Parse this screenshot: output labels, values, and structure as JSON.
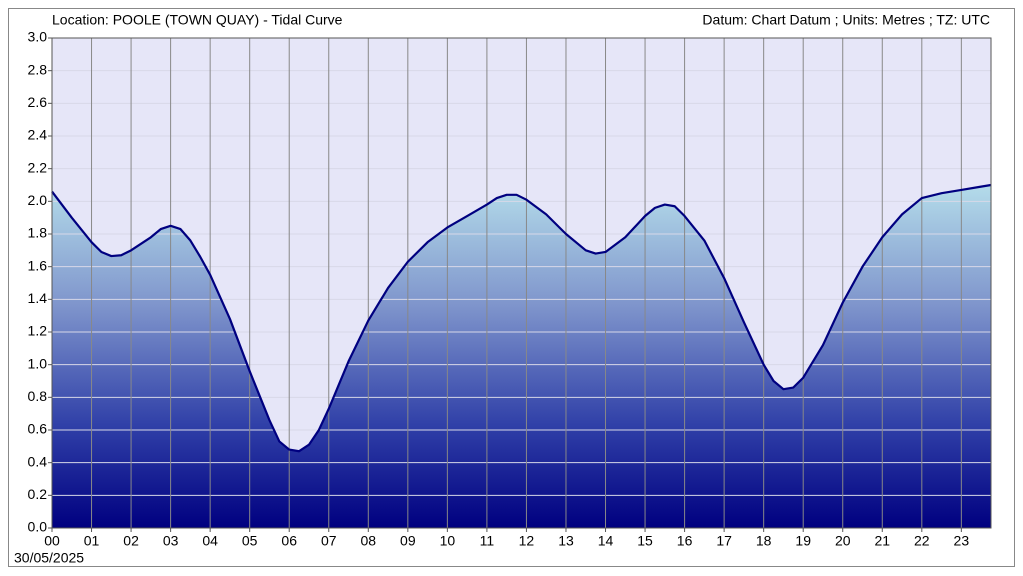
{
  "chart_data": {
    "type": "area",
    "title": "Location: POOLE (TOWN QUAY) - Tidal Curve",
    "subtitle": "Datum: Chart Datum ; Units: Metres ; TZ: UTC",
    "date_label": "30/05/2025",
    "color": "#000080",
    "grid": true,
    "x": [
      0,
      0.5,
      1,
      1.25,
      1.5,
      1.75,
      2,
      2.5,
      2.75,
      3,
      3.25,
      3.5,
      3.75,
      4,
      4.5,
      5,
      5.5,
      5.75,
      6,
      6.25,
      6.5,
      6.75,
      7,
      7.5,
      8,
      8.5,
      9,
      9.5,
      10,
      10.5,
      11,
      11.25,
      11.5,
      11.75,
      12,
      12.5,
      13,
      13.5,
      13.75,
      14,
      14.5,
      15,
      15.25,
      15.5,
      15.75,
      16,
      16.5,
      17,
      17.5,
      18,
      18.25,
      18.5,
      18.75,
      19,
      19.5,
      20,
      20.5,
      21,
      21.5,
      22,
      22.5,
      23,
      23.5,
      23.75
    ],
    "values": [
      2.06,
      1.9,
      1.75,
      1.69,
      1.665,
      1.67,
      1.7,
      1.78,
      1.83,
      1.85,
      1.83,
      1.76,
      1.66,
      1.55,
      1.28,
      0.96,
      0.66,
      0.53,
      0.48,
      0.47,
      0.51,
      0.6,
      0.73,
      1.02,
      1.27,
      1.47,
      1.63,
      1.75,
      1.84,
      1.91,
      1.98,
      2.02,
      2.04,
      2.04,
      2.01,
      1.92,
      1.8,
      1.7,
      1.68,
      1.69,
      1.78,
      1.91,
      1.96,
      1.98,
      1.97,
      1.91,
      1.76,
      1.53,
      1.26,
      1.0,
      0.9,
      0.85,
      0.86,
      0.92,
      1.12,
      1.38,
      1.6,
      1.78,
      1.92,
      2.02,
      2.05,
      2.07,
      2.09,
      2.1
    ],
    "xlim": [
      0,
      23.75
    ],
    "xticks": [
      {
        "value": 0,
        "label": "00"
      },
      {
        "value": 1,
        "label": "01"
      },
      {
        "value": 2,
        "label": "02"
      },
      {
        "value": 3,
        "label": "03"
      },
      {
        "value": 4,
        "label": "04"
      },
      {
        "value": 5,
        "label": "05"
      },
      {
        "value": 6,
        "label": "06"
      },
      {
        "value": 7,
        "label": "07"
      },
      {
        "value": 8,
        "label": "08"
      },
      {
        "value": 9,
        "label": "09"
      },
      {
        "value": 10,
        "label": "10"
      },
      {
        "value": 11,
        "label": "11"
      },
      {
        "value": 12,
        "label": "12"
      },
      {
        "value": 13,
        "label": "13"
      },
      {
        "value": 14,
        "label": "14"
      },
      {
        "value": 15,
        "label": "15"
      },
      {
        "value": 16,
        "label": "16"
      },
      {
        "value": 17,
        "label": "17"
      },
      {
        "value": 18,
        "label": "18"
      },
      {
        "value": 19,
        "label": "19"
      },
      {
        "value": 20,
        "label": "20"
      },
      {
        "value": 21,
        "label": "21"
      },
      {
        "value": 22,
        "label": "22"
      },
      {
        "value": 23,
        "label": "23"
      }
    ],
    "ylim": [
      0,
      3
    ],
    "yticks": [
      {
        "value": 0,
        "label": "0.0"
      },
      0.2,
      0.4,
      0.6,
      0.8,
      {
        "value": 1,
        "label": "1.0"
      },
      1.2,
      1.4,
      1.6,
      1.8,
      {
        "value": 2,
        "label": "2.0"
      },
      2.2,
      2.4,
      2.6,
      2.8,
      {
        "value": 3,
        "label": "3.0"
      }
    ]
  }
}
